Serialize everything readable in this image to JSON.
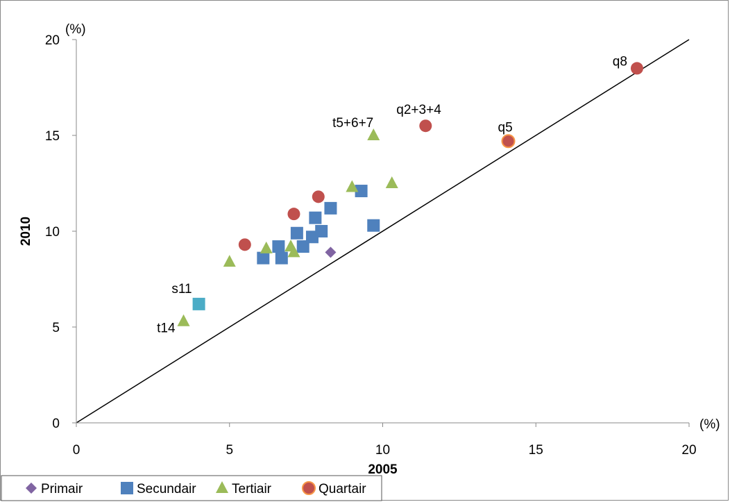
{
  "chart_data": {
    "type": "scatter",
    "title": "",
    "xlabel": "2005",
    "ylabel": "2010",
    "x_unit": "(%)",
    "y_unit": "(%)",
    "xlim": [
      0,
      20
    ],
    "ylim": [
      0,
      20
    ],
    "xticks": [
      "0",
      "5",
      "10",
      "15",
      "20"
    ],
    "yticks": [
      "0",
      "5",
      "10",
      "15",
      "20"
    ],
    "grid": false,
    "diagonal_line": true,
    "legend_position": "bottom-left",
    "series": [
      {
        "name": "Primair",
        "marker": "diamond",
        "color": "#8064A2",
        "points": [
          {
            "x": 8.3,
            "y": 8.9,
            "label": ""
          }
        ]
      },
      {
        "name": "Secundair",
        "marker": "square",
        "color": "#4F81BD",
        "points": [
          {
            "x": 4.0,
            "y": 6.2,
            "label": "s11",
            "color": "#4BACC6"
          },
          {
            "x": 6.1,
            "y": 8.6,
            "label": ""
          },
          {
            "x": 6.7,
            "y": 8.6,
            "label": ""
          },
          {
            "x": 6.6,
            "y": 9.2,
            "label": ""
          },
          {
            "x": 7.2,
            "y": 9.9,
            "label": ""
          },
          {
            "x": 7.4,
            "y": 9.2,
            "label": ""
          },
          {
            "x": 7.7,
            "y": 9.7,
            "label": ""
          },
          {
            "x": 7.8,
            "y": 10.7,
            "label": ""
          },
          {
            "x": 8.0,
            "y": 10.0,
            "label": ""
          },
          {
            "x": 8.3,
            "y": 11.2,
            "label": ""
          },
          {
            "x": 9.3,
            "y": 12.1,
            "label": ""
          },
          {
            "x": 9.7,
            "y": 10.3,
            "label": ""
          }
        ]
      },
      {
        "name": "Tertiair",
        "marker": "triangle",
        "color": "#9BBB59",
        "points": [
          {
            "x": 3.5,
            "y": 5.3,
            "label": "t14"
          },
          {
            "x": 5.0,
            "y": 8.4,
            "label": ""
          },
          {
            "x": 6.2,
            "y": 9.1,
            "label": ""
          },
          {
            "x": 7.0,
            "y": 9.2,
            "label": ""
          },
          {
            "x": 7.1,
            "y": 8.9,
            "label": ""
          },
          {
            "x": 9.0,
            "y": 12.3,
            "label": ""
          },
          {
            "x": 10.3,
            "y": 12.5,
            "label": ""
          },
          {
            "x": 9.7,
            "y": 15.0,
            "label": "t5+6+7"
          }
        ]
      },
      {
        "name": "Quartair",
        "marker": "circle",
        "color": "#C0504D",
        "points": [
          {
            "x": 5.5,
            "y": 9.3,
            "label": ""
          },
          {
            "x": 7.1,
            "y": 10.9,
            "label": ""
          },
          {
            "x": 7.9,
            "y": 11.8,
            "label": ""
          },
          {
            "x": 11.4,
            "y": 15.5,
            "label": "q2+3+4"
          },
          {
            "x": 14.1,
            "y": 14.7,
            "label": "q5",
            "outline": "#F79646"
          },
          {
            "x": 18.3,
            "y": 18.5,
            "label": "q8"
          }
        ]
      }
    ]
  }
}
